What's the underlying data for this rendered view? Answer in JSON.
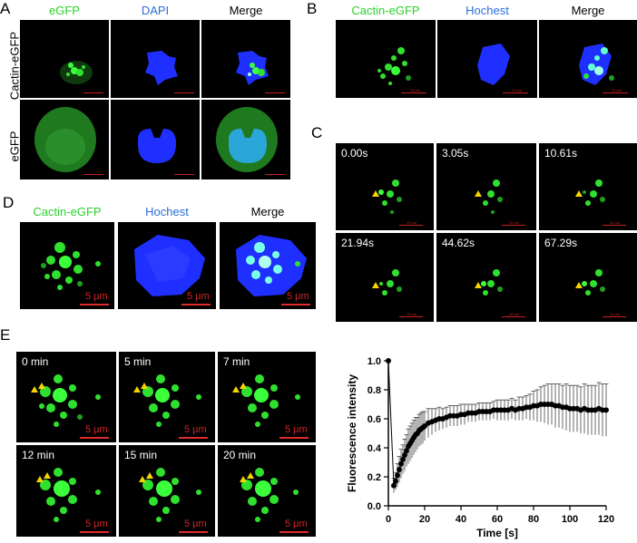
{
  "panel_labels": {
    "a": "A",
    "b": "B",
    "c": "C",
    "d": "D",
    "e": "E"
  },
  "panelA": {
    "columns": [
      "eGFP",
      "DAPI",
      "Merge"
    ],
    "rows": [
      "Cactin-eGFP",
      "eGFP"
    ]
  },
  "panelB": {
    "columns": [
      "Cactin-eGFP",
      "Hochest",
      "Merge"
    ],
    "scale": "10 μm"
  },
  "panelC": {
    "times": [
      "0.00s",
      "3.05s",
      "10.61s",
      "21.94s",
      "44.62s",
      "67.29s"
    ],
    "scale": "10 μm"
  },
  "panelD": {
    "columns": [
      "Cactin-eGFP",
      "Hochest",
      "Merge"
    ],
    "scale": "5 μm"
  },
  "panelE": {
    "times": [
      "0 min",
      "5 min",
      "7 min",
      "12 min",
      "15 min",
      "20 min"
    ],
    "scale": "5 μm"
  },
  "chart_data": {
    "type": "line",
    "xlabel": "Time [s]",
    "ylabel": "Fluorescence intensity",
    "xlim": [
      0,
      120
    ],
    "ylim": [
      0,
      1.0
    ],
    "xticks": [
      0,
      20,
      40,
      60,
      80,
      100,
      120
    ],
    "yticks": [
      0.0,
      0.2,
      0.4,
      0.6,
      0.8,
      1.0
    ],
    "x": [
      0,
      3,
      4,
      5,
      6,
      7,
      8,
      9,
      10,
      11,
      12,
      13,
      14,
      15,
      16,
      17,
      18,
      19,
      20,
      22,
      24,
      26,
      28,
      30,
      32,
      34,
      36,
      38,
      40,
      42,
      44,
      46,
      48,
      50,
      52,
      54,
      56,
      58,
      60,
      62,
      64,
      66,
      68,
      70,
      72,
      74,
      76,
      78,
      80,
      82,
      84,
      86,
      88,
      90,
      92,
      94,
      96,
      98,
      100,
      102,
      104,
      106,
      108,
      110,
      112,
      114,
      116,
      118,
      120
    ],
    "values": [
      1.0,
      0.14,
      0.17,
      0.21,
      0.25,
      0.29,
      0.32,
      0.35,
      0.38,
      0.41,
      0.43,
      0.45,
      0.47,
      0.49,
      0.5,
      0.52,
      0.53,
      0.54,
      0.55,
      0.57,
      0.58,
      0.59,
      0.6,
      0.6,
      0.61,
      0.62,
      0.62,
      0.62,
      0.63,
      0.63,
      0.64,
      0.64,
      0.64,
      0.65,
      0.65,
      0.65,
      0.65,
      0.66,
      0.66,
      0.66,
      0.66,
      0.66,
      0.67,
      0.66,
      0.67,
      0.67,
      0.68,
      0.68,
      0.69,
      0.69,
      0.7,
      0.7,
      0.7,
      0.7,
      0.69,
      0.69,
      0.68,
      0.68,
      0.67,
      0.67,
      0.67,
      0.66,
      0.67,
      0.66,
      0.66,
      0.66,
      0.67,
      0.66,
      0.66
    ],
    "err": [
      0,
      0.05,
      0.06,
      0.08,
      0.09,
      0.1,
      0.1,
      0.11,
      0.11,
      0.12,
      0.12,
      0.12,
      0.12,
      0.12,
      0.11,
      0.11,
      0.11,
      0.11,
      0.1,
      0.1,
      0.09,
      0.08,
      0.08,
      0.07,
      0.07,
      0.07,
      0.07,
      0.07,
      0.07,
      0.07,
      0.06,
      0.06,
      0.06,
      0.06,
      0.06,
      0.06,
      0.06,
      0.06,
      0.07,
      0.07,
      0.07,
      0.07,
      0.07,
      0.07,
      0.08,
      0.08,
      0.08,
      0.09,
      0.1,
      0.11,
      0.12,
      0.13,
      0.14,
      0.14,
      0.15,
      0.15,
      0.15,
      0.16,
      0.16,
      0.16,
      0.16,
      0.16,
      0.17,
      0.17,
      0.17,
      0.17,
      0.18,
      0.18,
      0.18
    ]
  }
}
